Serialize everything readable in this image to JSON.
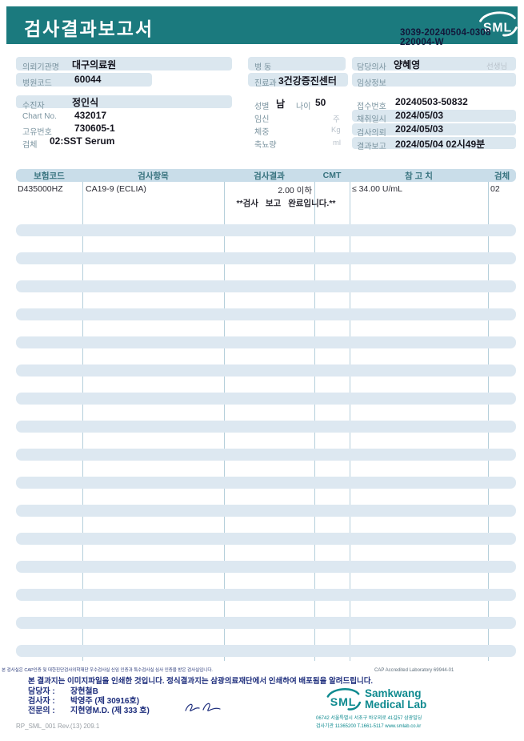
{
  "colors": {
    "brand_teal": "#1b7a7e",
    "logo_teal": "#0e8a8f",
    "footer_navy": "#1f2f7d",
    "id_navy": "#13173a",
    "chip_bg": "#dbe7ef",
    "stripe_bg": "#dde8f1",
    "thead_bg": "#c9dde9",
    "thead_text": "#38737f",
    "label_color": "#7b94a0",
    "value_color": "#15151f",
    "unit_color": "#b9c2cb",
    "cell_text": "#2a2a33"
  },
  "header": {
    "title": "검사결과보고서",
    "logo_text": "SML",
    "report_id_line1": "3039-20240504-0308",
    "report_id_line2": "220004-W"
  },
  "info": {
    "left": {
      "org_label": "의뢰기관명",
      "org_value": "대구의료원",
      "hospital_code_label": "병원코드",
      "hospital_code_value": "60044",
      "patient_label": "수진자",
      "patient_value": "정인식",
      "chart_label": "Chart No.",
      "chart_value": "432017",
      "unique_label": "고유번호",
      "unique_value": "730605-1",
      "specimen_label": "검체",
      "specimen_value": "02:SST Serum"
    },
    "middle": {
      "ward_label": "병 동",
      "dept_label": "진료과",
      "dept_value": "3건강증진센터",
      "sex_label": "성별",
      "sex_value": "남",
      "age_label": "나이",
      "age_value": "50",
      "pregnancy_label": "임신",
      "pregnancy_unit": "주",
      "weight_label": "체중",
      "weight_unit": "Kg",
      "urine_label": "축뇨량",
      "urine_unit": "ml"
    },
    "right": {
      "doctor_label": "담당의사",
      "doctor_value": "양혜영",
      "doctor_suffix": "선생님",
      "clinical_label": "임상정보",
      "receipt_label": "접수번호",
      "receipt_value": "20240503-50832",
      "collect_label": "채취일시",
      "collect_value": "2024/05/03",
      "request_label": "검사의뢰",
      "request_value": "2024/05/03",
      "report_label": "결과보고",
      "report_value": "2024/05/04 02시49분"
    }
  },
  "table": {
    "headers": [
      "보험코드",
      "검사항목",
      "검사결과",
      "CMT",
      "참 고 치",
      "검체"
    ],
    "rows": [
      {
        "code": "D435000HZ",
        "item": "CA19-9 (ECLIA)",
        "result": "2.00 이하",
        "cmt": "",
        "reference": "≤ 34.00 U/mL",
        "specimen": "02"
      }
    ],
    "message": "**검사 보고 완료입니다.**"
  },
  "footer": {
    "accreditation_ko": "본 검사실은 CAP인증 및 대한진단검사의학재단 우수검사실 신임 인증과 특수검사실 심사 인증을 받은 검사실입니다.",
    "accreditation_en": "CAP Accredited Laboratory 69944-01",
    "notice": "본 결과지는 이미지파일을 인쇄한 것입니다. 정식결과지는 삼광의료재단에서 인쇄하여 배포됨을 알려드립니다.",
    "staff": [
      {
        "label": "담당자 :",
        "name": "장현철B"
      },
      {
        "label": "검사자 :",
        "name": "박영주 (제 30916호)"
      },
      {
        "label": "전문의 :",
        "name": "지현영M.D. (제 333 호)"
      }
    ],
    "logo_text": "SML",
    "lab_name_line1": "Samkwang",
    "lab_name_line2": "Medical Lab",
    "address": "06742 서울특별시 서초구 바우뫼로 41길57 삼광빌딩",
    "contact": "검사기관 11365200 T.1661-5117 www.smlab.co.kr",
    "doc_code": "RP_SML_001 Rev.(13) 209.1"
  }
}
